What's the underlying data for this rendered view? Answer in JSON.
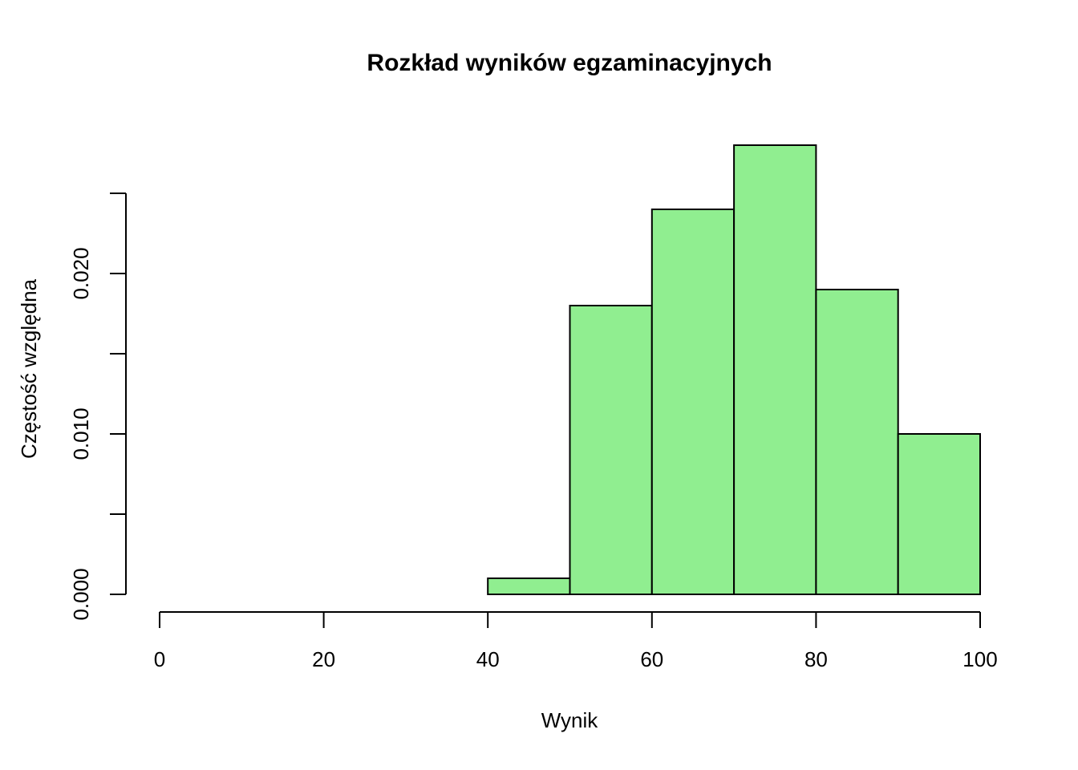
{
  "chart_data": {
    "type": "histogram",
    "title": "Rozkład wyników egzaminacyjnych",
    "x_label": "Wynik",
    "y_label": "Częstość względna",
    "bins": [
      0,
      10,
      20,
      30,
      40,
      50,
      60,
      70,
      80,
      90,
      100
    ],
    "values": [
      0,
      0,
      0,
      0,
      0.001,
      0.018,
      0.024,
      0.028,
      0.019,
      0.01
    ],
    "color": "#90ee90",
    "xlim": [
      0,
      100
    ],
    "xticks": [
      0,
      20,
      40,
      60,
      80,
      100
    ],
    "ylim": [
      0,
      0.028
    ],
    "yticks": [
      {
        "value": 0,
        "label": "0.000"
      },
      {
        "value": 0.01,
        "label": "0.010"
      },
      {
        "value": 0.02,
        "label": "0.020"
      }
    ],
    "yticks_unlabeled": [
      0.005,
      0.015,
      0.025
    ]
  }
}
